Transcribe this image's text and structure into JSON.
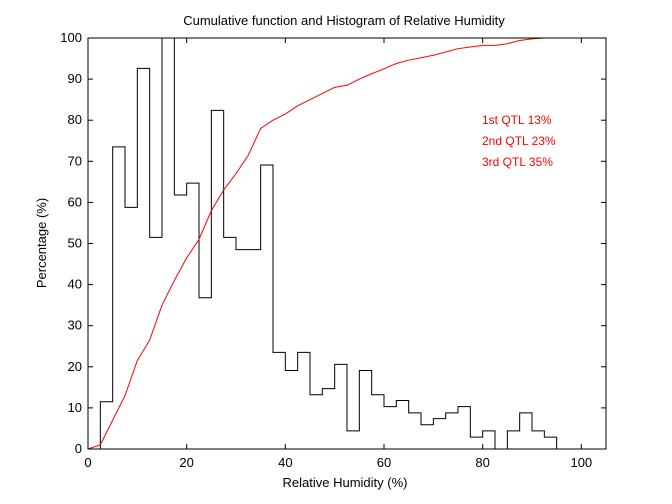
{
  "chart_data": {
    "type": "line",
    "title": "Cumulative function and Histogram of Relative Humidity",
    "xlabel": "Relative Humidity (%)",
    "ylabel": "Percentage (%)",
    "xlim": [
      0,
      105
    ],
    "ylim": [
      0,
      100
    ],
    "xticks": [
      0,
      20,
      40,
      60,
      80,
      100
    ],
    "yticks": [
      0,
      10,
      20,
      30,
      40,
      50,
      60,
      70,
      80,
      90,
      100
    ],
    "grid": false,
    "colors": {
      "histogram": "#000000",
      "cumulative": "#ff0000"
    },
    "histogram": {
      "bin_edges": [
        0,
        2.5,
        5,
        7.5,
        10,
        12.5,
        15,
        17.5,
        20,
        22.5,
        25,
        27.5,
        30,
        32.5,
        35,
        37.5,
        40,
        42.5,
        45,
        47.5,
        50,
        52.5,
        55,
        57.5,
        60,
        62.5,
        65,
        67.5,
        70,
        72.5,
        75,
        77.5,
        80,
        82.5,
        85,
        87.5,
        90,
        92.5,
        95
      ],
      "values": [
        0,
        11.5,
        73.5,
        58.8,
        92.6,
        51.5,
        100,
        61.8,
        64.7,
        36.8,
        82.4,
        51.5,
        48.5,
        48.5,
        69.1,
        23.5,
        19.1,
        23.5,
        13.2,
        14.7,
        20.6,
        4.4,
        19.1,
        13.2,
        10.3,
        11.8,
        8.8,
        5.9,
        7.4,
        8.8,
        10.3,
        2.9,
        4.4,
        0,
        4.4,
        8.8,
        4.4,
        2.9
      ]
    },
    "cumulative": {
      "x": [
        0,
        2.5,
        5,
        7.5,
        10,
        12.5,
        15,
        17.5,
        20,
        22.5,
        25,
        27.5,
        30,
        32.5,
        35,
        37.5,
        40,
        42.5,
        45,
        47.5,
        50,
        52.5,
        55,
        57.5,
        60,
        62.5,
        65,
        67.5,
        70,
        72.5,
        75,
        77.5,
        80,
        82.5,
        85,
        87.5,
        90,
        92.5
      ],
      "y": [
        0,
        1,
        7,
        13,
        21.5,
        26.5,
        35,
        41,
        46.5,
        51,
        58,
        63,
        67,
        71.5,
        78,
        80,
        81.5,
        83.5,
        85,
        86.5,
        88,
        88.5,
        90,
        91.3,
        92.5,
        93.8,
        94.6,
        95.2,
        95.8,
        96.6,
        97.4,
        97.8,
        98.2,
        98.2,
        98.6,
        99.4,
        99.8,
        100
      ]
    },
    "annotations": [
      "1st QTL  13%",
      "2nd QTL  23%",
      "3rd QTL  35%"
    ]
  }
}
